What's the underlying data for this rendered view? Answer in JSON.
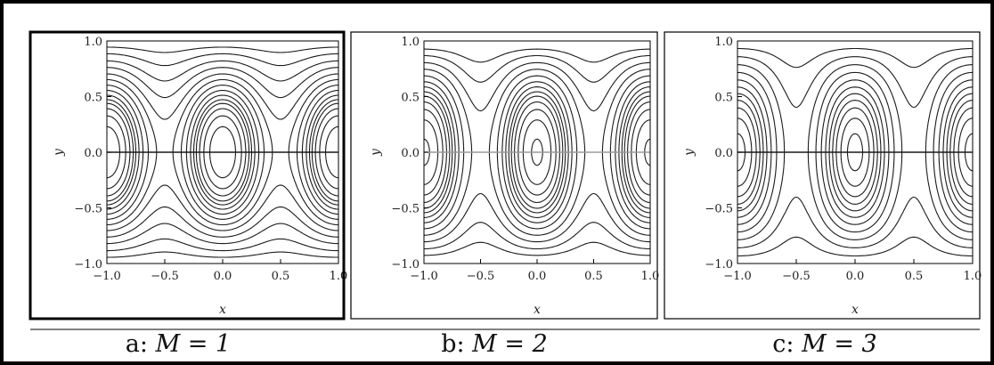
{
  "chart_data": [
    {
      "type": "contour",
      "caption": {
        "prefix": "a:",
        "math": "M = 1"
      },
      "parameter_M": 1,
      "xlabel": "x",
      "ylabel": "y",
      "xlim": [
        -1.0,
        1.0
      ],
      "ylim": [
        -1.0,
        1.0
      ],
      "xticks": [
        "-1.0",
        "-0.5",
        "0.0",
        "0.5",
        "1.0"
      ],
      "yticks": [
        "1.0",
        "0.5",
        "0.0",
        "-0.5",
        "-1.0"
      ],
      "grid": false
    },
    {
      "type": "contour",
      "caption": {
        "prefix": "b:",
        "math": "M = 2"
      },
      "parameter_M": 2,
      "xlabel": "x",
      "ylabel": "y",
      "xlim": [
        -1.0,
        1.0
      ],
      "ylim": [
        -1.0,
        1.0
      ],
      "xticks": [
        "-1.0",
        "-0.5",
        "0.0",
        "0.5",
        "1.0"
      ],
      "yticks": [
        "1.0",
        "0.5",
        "0.0",
        "-0.5",
        "-1.0"
      ],
      "grid": false
    },
    {
      "type": "contour",
      "caption": {
        "prefix": "c:",
        "math": "M = 3"
      },
      "parameter_M": 3,
      "xlabel": "x",
      "ylabel": "y",
      "xlim": [
        -1.0,
        1.0
      ],
      "ylim": [
        -1.0,
        1.0
      ],
      "xticks": [
        "-1.0",
        "-0.5",
        "0.0",
        "0.5",
        "1.0"
      ],
      "yticks": [
        "1.0",
        "0.5",
        "0.0",
        "-0.5",
        "-1.0"
      ],
      "grid": false
    }
  ],
  "colors": {
    "line": "#1a1a1a",
    "frame": "#000000",
    "midline": "#9a9a9a"
  }
}
